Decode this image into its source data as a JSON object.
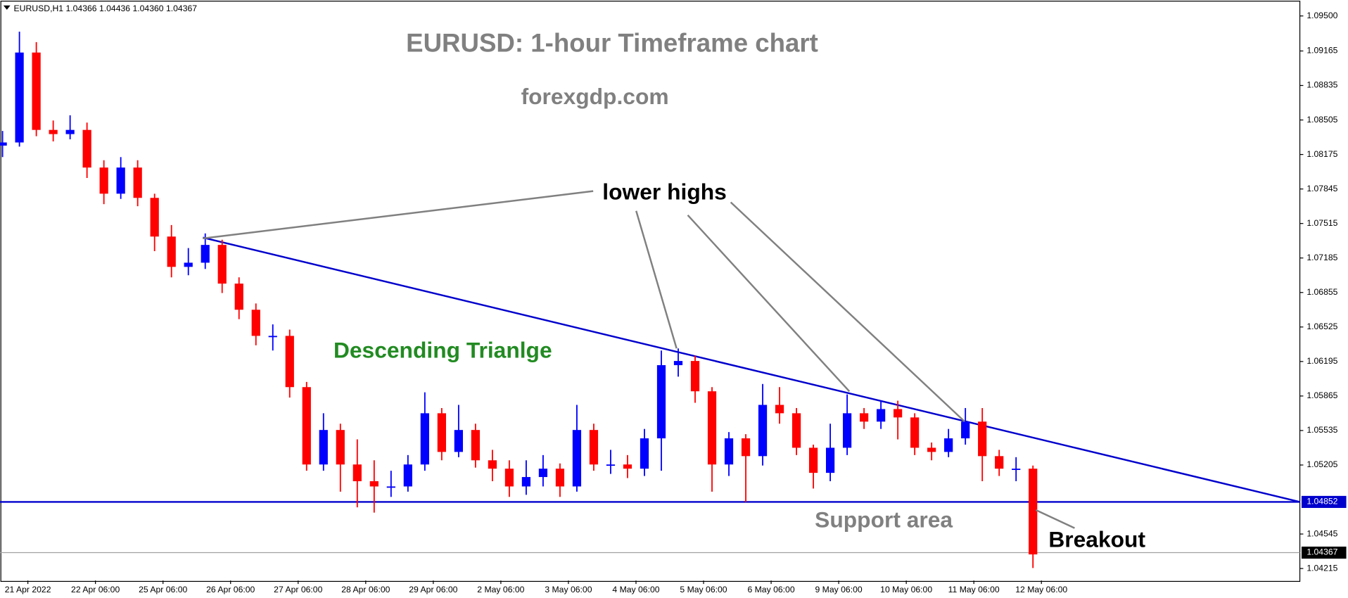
{
  "chart_data": {
    "type": "candlestick",
    "header": "EURUSD,H1  1.04366 1.04436 1.04360 1.04367",
    "title": "EURUSD: 1-hour Timeframe chart",
    "subtitle": "forexgdp.com",
    "up_color": "#0000ff",
    "down_color": "#ff0000",
    "open": [
      1.0826,
      1.0829,
      1.0915,
      1.0841,
      1.0837,
      1.0841,
      1.0805,
      1.078,
      1.0805,
      1.0776,
      1.0739,
      1.071,
      1.0714,
      1.0731,
      1.0694,
      1.0669,
      1.0644,
      1.0644,
      1.0595,
      1.0521,
      1.0554,
      1.0521,
      1.0505,
      1.05,
      1.05,
      1.0521,
      1.057,
      1.0533,
      1.0554,
      1.0525,
      1.0517,
      1.05,
      1.0509,
      1.0517,
      1.05,
      1.0554,
      1.0521,
      1.0521,
      1.0517,
      1.0546,
      1.0616,
      1.062,
      1.0591,
      1.0521,
      1.0546,
      1.0529,
      1.0578,
      1.057,
      1.0537,
      1.0513,
      1.0537,
      1.057,
      1.0562,
      1.0574,
      1.0566,
      1.0537,
      1.0533,
      1.0546,
      1.0562,
      1.0529,
      1.0517,
      1.0517
    ],
    "high": [
      1.084,
      1.0935,
      1.0925,
      1.085,
      1.0855,
      1.0848,
      1.0812,
      1.0815,
      1.0812,
      1.078,
      1.075,
      1.0728,
      1.0742,
      1.0736,
      1.07,
      1.0675,
      1.0655,
      1.065,
      1.06,
      1.057,
      1.056,
      1.0545,
      1.0525,
      1.0515,
      1.053,
      1.059,
      1.0575,
      1.0578,
      1.056,
      1.0535,
      1.0525,
      1.0525,
      1.053,
      1.0522,
      1.0578,
      1.056,
      1.0535,
      1.053,
      1.0555,
      1.063,
      1.0632,
      1.0625,
      1.0595,
      1.0552,
      1.055,
      1.0598,
      1.0595,
      1.0575,
      1.054,
      1.056,
      1.0588,
      1.0575,
      1.0582,
      1.0582,
      1.057,
      1.0542,
      1.0555,
      1.0575,
      1.0575,
      1.0535,
      1.0528,
      1.052
    ],
    "low": [
      1.0815,
      1.0825,
      1.0835,
      1.083,
      1.0832,
      1.0795,
      1.077,
      1.0775,
      1.0768,
      1.0725,
      1.07,
      1.0702,
      1.0708,
      1.0685,
      1.066,
      1.0635,
      1.063,
      1.0585,
      1.0515,
      1.0515,
      1.0495,
      1.048,
      1.0475,
      1.049,
      1.0495,
      1.0515,
      1.0525,
      1.0528,
      1.0518,
      1.0505,
      1.049,
      1.0492,
      1.05,
      1.049,
      1.0495,
      1.0515,
      1.0512,
      1.0508,
      1.051,
      1.0515,
      1.0605,
      1.058,
      1.0495,
      1.051,
      1.0485,
      1.052,
      1.056,
      1.053,
      1.0498,
      1.0505,
      1.053,
      1.0555,
      1.0555,
      1.0545,
      1.053,
      1.0525,
      1.0528,
      1.054,
      1.0505,
      1.051,
      1.0505,
      1.0422
    ],
    "close": [
      1.0829,
      1.0915,
      1.0841,
      1.0837,
      1.0841,
      1.0805,
      1.078,
      1.0805,
      1.0776,
      1.0739,
      1.071,
      1.0714,
      1.0731,
      1.0694,
      1.0669,
      1.0644,
      1.0644,
      1.0595,
      1.0521,
      1.0554,
      1.0521,
      1.0505,
      1.05,
      1.05,
      1.0521,
      1.057,
      1.0533,
      1.0554,
      1.0525,
      1.0517,
      1.05,
      1.0509,
      1.0517,
      1.05,
      1.0554,
      1.0521,
      1.0521,
      1.0517,
      1.0546,
      1.0616,
      1.062,
      1.0591,
      1.0521,
      1.0546,
      1.0529,
      1.0578,
      1.057,
      1.0537,
      1.0513,
      1.0537,
      1.057,
      1.0562,
      1.0574,
      1.0566,
      1.0537,
      1.0533,
      1.0546,
      1.0562,
      1.0529,
      1.0517,
      1.0517,
      1.0435
    ],
    "xlim": [
      -0.15,
      76.8
    ],
    "ylim": [
      1.041,
      1.0965
    ],
    "xticks": [
      {
        "value": 1.5,
        "label": "21 Apr 2022"
      },
      {
        "value": 5.5,
        "label": "22 Apr 06:00"
      },
      {
        "value": 9.5,
        "label": "25 Apr 06:00"
      },
      {
        "value": 13.5,
        "label": "26 Apr 06:00"
      },
      {
        "value": 17.5,
        "label": "27 Apr 06:00"
      },
      {
        "value": 21.5,
        "label": "28 Apr 06:00"
      },
      {
        "value": 25.5,
        "label": "29 Apr 06:00"
      },
      {
        "value": 29.5,
        "label": "2 May 06:00"
      },
      {
        "value": 33.5,
        "label": "3 May 06:00"
      },
      {
        "value": 37.5,
        "label": "4 May 06:00"
      },
      {
        "value": 41.5,
        "label": "5 May 06:00"
      },
      {
        "value": 45.5,
        "label": "6 May 06:00"
      },
      {
        "value": 49.5,
        "label": "9 May 06:00"
      },
      {
        "value": 53.5,
        "label": "10 May 06:00"
      },
      {
        "value": 57.5,
        "label": "11 May 06:00"
      },
      {
        "value": 61.5,
        "label": "12 May 06:00"
      }
    ],
    "yticks": [
      {
        "value": 1.095,
        "label": "1.09500"
      },
      {
        "value": 1.09165,
        "label": "1.09165"
      },
      {
        "value": 1.08835,
        "label": "1.08835"
      },
      {
        "value": 1.08505,
        "label": "1.08505"
      },
      {
        "value": 1.08175,
        "label": "1.08175"
      },
      {
        "value": 1.07845,
        "label": "1.07845"
      },
      {
        "value": 1.07515,
        "label": "1.07515"
      },
      {
        "value": 1.07185,
        "label": "1.07185"
      },
      {
        "value": 1.06855,
        "label": "1.06855"
      },
      {
        "value": 1.06525,
        "label": "1.06525"
      },
      {
        "value": 1.06195,
        "label": "1.06195"
      },
      {
        "value": 1.05865,
        "label": "1.05865"
      },
      {
        "value": 1.05535,
        "label": "1.05535"
      },
      {
        "value": 1.05205,
        "label": "1.05205"
      },
      {
        "value": 1.04545,
        "label": "1.04545"
      },
      {
        "value": 1.04215,
        "label": "1.04215"
      }
    ],
    "trendline": {
      "x": [
        11.86,
        76.8
      ],
      "y": [
        1.0738,
        1.04852
      ],
      "color": "#0000cd"
    },
    "support_level": 1.04852,
    "current_price": 1.04367,
    "annotations": {
      "lower_highs": "lower highs",
      "pattern": "Descending Trianlge",
      "support": "Support area",
      "breakout": "Breakout"
    }
  }
}
